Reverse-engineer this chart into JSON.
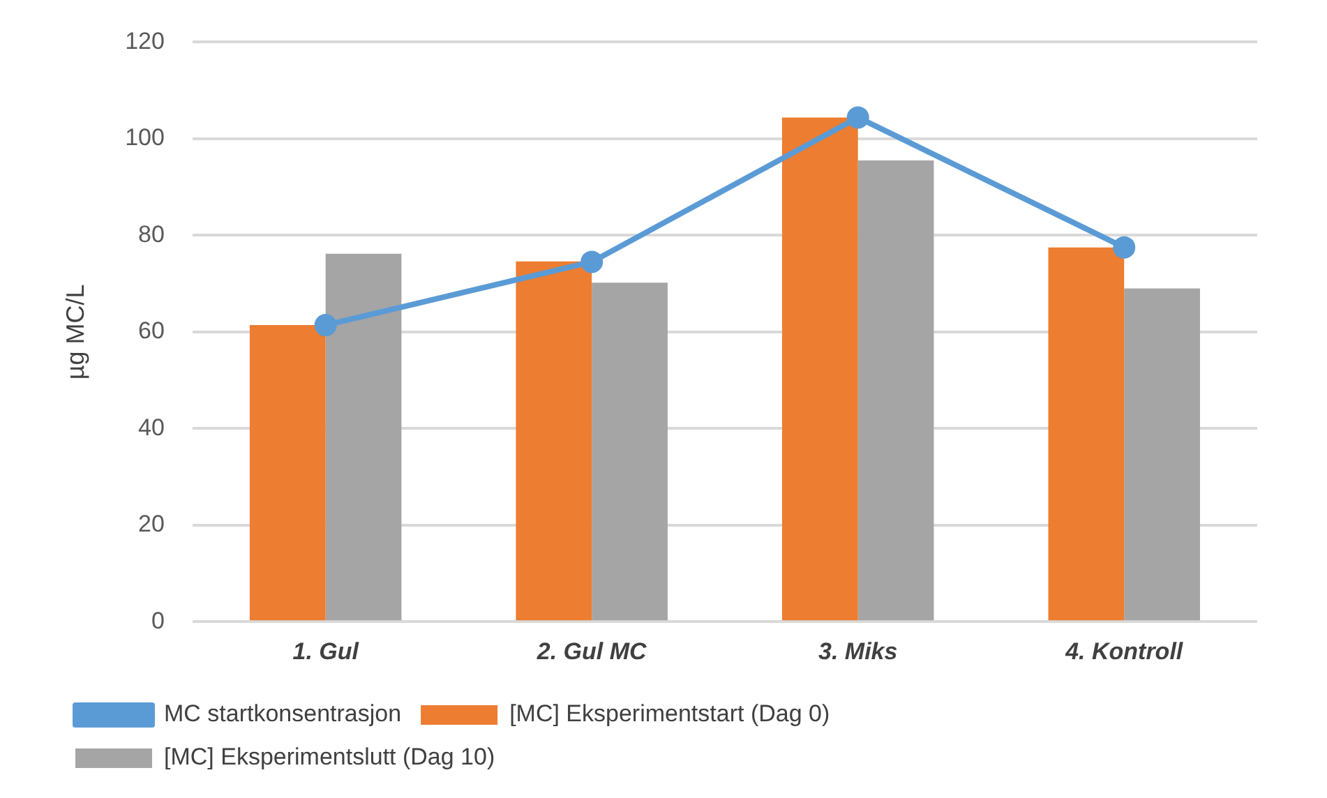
{
  "chart_data": {
    "type": "bar",
    "ylabel": "µg MC/L",
    "categories": [
      "1. Gul",
      "2. Gul MC",
      "3. Miks",
      "4. Kontroll"
    ],
    "series": [
      {
        "name": "[MC] Eksperimentstart (Dag 0)",
        "color": "#ed7d31",
        "values": [
          61.4,
          74.6,
          104.4,
          77.5
        ]
      },
      {
        "name": "[MC] Eksperimentslutt (Dag 10)",
        "color": "#a5a5a5",
        "values": [
          76.2,
          70.2,
          95.5,
          69.0
        ]
      },
      {
        "name": "MC startkonsentrasjon",
        "type": "line",
        "color": "#5b9bd5",
        "values": [
          61.4,
          74.5,
          104.4,
          77.5
        ]
      }
    ],
    "ylim": [
      0,
      120
    ],
    "yticks": [
      0,
      20,
      40,
      60,
      80,
      100,
      120
    ],
    "grid": "y",
    "legend": "bottom",
    "marker": "circle"
  }
}
